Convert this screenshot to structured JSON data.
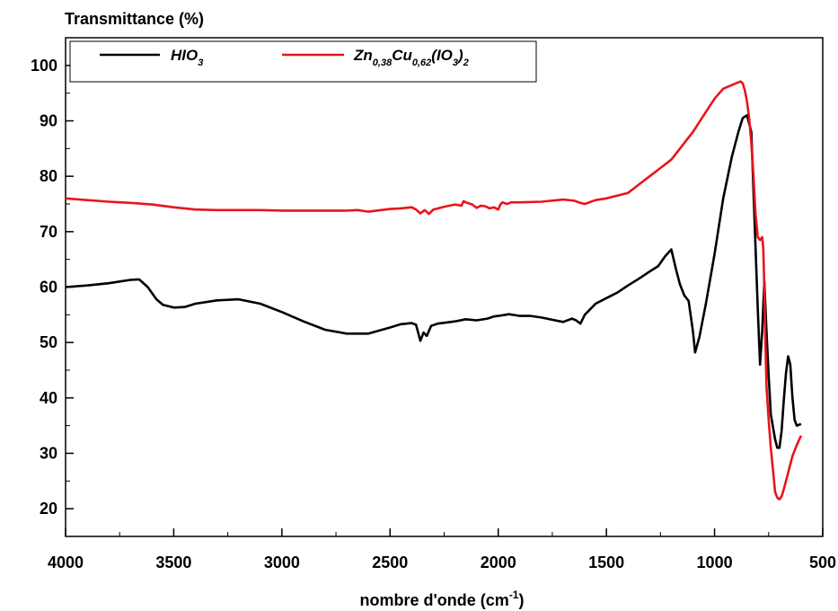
{
  "chart_data": {
    "type": "line",
    "ylabel": "Transmittance (%)",
    "xlabel_main": "nombre d'onde (cm",
    "xlabel_sup": "-1",
    "xlabel_close": ")",
    "xlim": [
      4000,
      500
    ],
    "ylim": [
      15,
      105
    ],
    "x_ticks": [
      4000,
      3500,
      3000,
      2500,
      2000,
      1500,
      1000,
      500
    ],
    "y_ticks": [
      20,
      30,
      40,
      50,
      60,
      70,
      80,
      90,
      100
    ],
    "grid": false,
    "legend_position": "top-left",
    "series": [
      {
        "name": "HIO3",
        "legend": {
          "base": "HIO",
          "sub": "3"
        },
        "color": "#000000",
        "x": [
          4000,
          3900,
          3800,
          3750,
          3700,
          3660,
          3620,
          3580,
          3550,
          3500,
          3450,
          3400,
          3300,
          3200,
          3100,
          3000,
          2900,
          2800,
          2700,
          2600,
          2500,
          2450,
          2400,
          2380,
          2360,
          2345,
          2330,
          2310,
          2280,
          2200,
          2150,
          2100,
          2050,
          2020,
          2000,
          1950,
          1900,
          1850,
          1800,
          1750,
          1700,
          1660,
          1640,
          1620,
          1600,
          1550,
          1500,
          1450,
          1400,
          1350,
          1300,
          1260,
          1230,
          1200,
          1180,
          1160,
          1140,
          1120,
          1100,
          1090,
          1070,
          1040,
          1000,
          960,
          920,
          890,
          870,
          850,
          830,
          815,
          800,
          790,
          780,
          770,
          760,
          750,
          740,
          720,
          710,
          700,
          690,
          680,
          670,
          660,
          650,
          640,
          630,
          620,
          600
        ],
        "y": [
          60.0,
          60.3,
          60.7,
          61.0,
          61.3,
          61.4,
          60.0,
          57.8,
          56.8,
          56.3,
          56.4,
          57.0,
          57.6,
          57.8,
          57.0,
          55.5,
          53.8,
          52.3,
          51.6,
          51.6,
          52.7,
          53.3,
          53.5,
          53.2,
          50.3,
          51.8,
          51.2,
          53.0,
          53.4,
          53.8,
          54.2,
          54.0,
          54.3,
          54.7,
          54.8,
          55.1,
          54.8,
          54.8,
          54.5,
          54.1,
          53.7,
          54.3,
          54.0,
          53.4,
          55.0,
          57.0,
          58.0,
          59.0,
          60.3,
          61.5,
          62.8,
          63.8,
          65.5,
          66.8,
          63.5,
          60.5,
          58.5,
          57.5,
          52.0,
          48.2,
          51.0,
          57.0,
          66.0,
          76.0,
          83.5,
          88.0,
          90.5,
          91.0,
          88.0,
          72.0,
          56.0,
          46.0,
          52.0,
          61.0,
          52.0,
          44.0,
          37.0,
          32.5,
          31.0,
          31.0,
          34.0,
          39.5,
          44.5,
          47.5,
          46.0,
          40.0,
          36.0,
          35.0,
          35.3
        ]
      },
      {
        "name": "Zn0,38Cu0,62(IO3)2",
        "legend": {
          "parts": [
            {
              "t": "Zn",
              "sub": false
            },
            {
              "t": "0,38",
              "sub": true
            },
            {
              "t": "Cu",
              "sub": false
            },
            {
              "t": "0,62",
              "sub": true
            },
            {
              "t": "(IO",
              "sub": false
            },
            {
              "t": "3",
              "sub": true
            },
            {
              "t": ")",
              "sub": false
            },
            {
              "t": "2",
              "sub": true
            }
          ]
        },
        "color": "#e8141c",
        "x": [
          4000,
          3900,
          3800,
          3700,
          3600,
          3500,
          3400,
          3300,
          3200,
          3100,
          3000,
          2900,
          2800,
          2700,
          2650,
          2600,
          2500,
          2450,
          2400,
          2380,
          2360,
          2340,
          2320,
          2300,
          2250,
          2200,
          2170,
          2160,
          2150,
          2120,
          2100,
          2080,
          2060,
          2040,
          2020,
          2000,
          1990,
          1980,
          1960,
          1940,
          1900,
          1800,
          1700,
          1650,
          1620,
          1600,
          1550,
          1500,
          1450,
          1400,
          1350,
          1300,
          1250,
          1200,
          1150,
          1100,
          1050,
          1000,
          960,
          930,
          900,
          880,
          870,
          860,
          850,
          840,
          830,
          820,
          810,
          800,
          790,
          780,
          775,
          770,
          765,
          760,
          750,
          740,
          730,
          720,
          710,
          700,
          690,
          680,
          670,
          660,
          650,
          640,
          620,
          600
        ],
        "y": [
          76.0,
          75.7,
          75.4,
          75.2,
          74.9,
          74.4,
          74.0,
          73.9,
          73.9,
          73.9,
          73.8,
          73.8,
          73.8,
          73.8,
          73.9,
          73.6,
          74.1,
          74.2,
          74.4,
          74.0,
          73.3,
          73.9,
          73.2,
          74.0,
          74.5,
          74.9,
          74.7,
          75.5,
          75.3,
          74.9,
          74.3,
          74.7,
          74.6,
          74.2,
          74.4,
          74.0,
          74.9,
          75.3,
          75.0,
          75.3,
          75.3,
          75.4,
          75.8,
          75.6,
          75.2,
          75.0,
          75.7,
          76.0,
          76.5,
          77.0,
          78.5,
          80.0,
          81.5,
          83.0,
          85.5,
          88.0,
          91.0,
          94.0,
          95.8,
          96.3,
          96.8,
          97.1,
          96.8,
          95.5,
          93.5,
          90.5,
          86.0,
          80.0,
          73.0,
          69.0,
          68.5,
          69.0,
          67.0,
          60.0,
          50.0,
          42.0,
          36.0,
          31.0,
          27.0,
          23.0,
          22.0,
          21.7,
          22.2,
          23.5,
          25.0,
          26.5,
          28.0,
          29.5,
          31.5,
          33.2
        ]
      }
    ]
  }
}
